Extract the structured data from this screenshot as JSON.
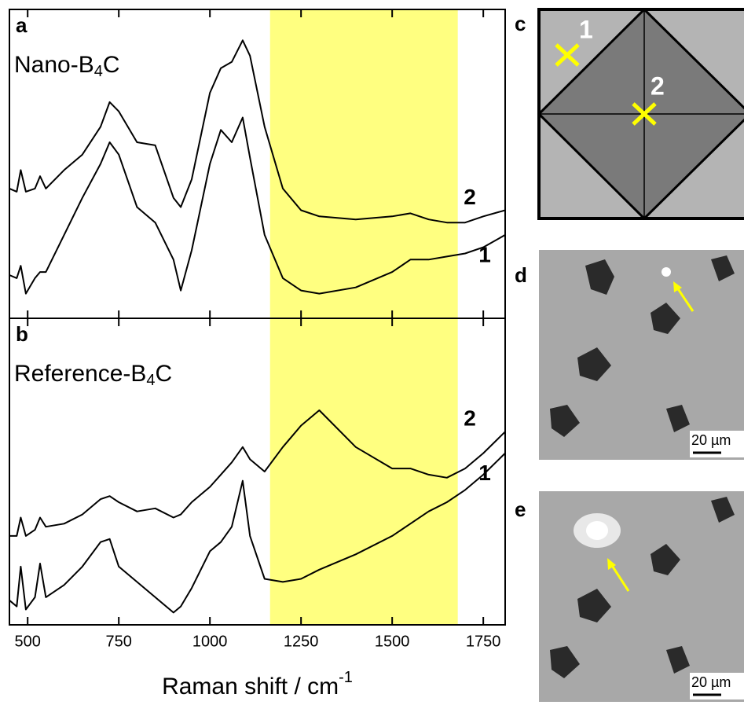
{
  "chart_data": [
    {
      "type": "line",
      "panel": "a",
      "title": {
        "prefix": "Nano-B",
        "sub": "4",
        "suffix": "C"
      },
      "x": [
        450,
        470,
        481,
        495,
        520,
        534,
        550,
        600,
        650,
        700,
        725,
        750,
        800,
        850,
        900,
        920,
        950,
        1000,
        1030,
        1060,
        1090,
        1110,
        1150,
        1200,
        1250,
        1300,
        1400,
        1500,
        1550,
        1600,
        1650,
        1700,
        1750,
        1810
      ],
      "xlim": [
        450,
        1810
      ],
      "ylim": [
        0,
        100
      ],
      "highlight": {
        "range": [
          1165,
          1680
        ],
        "color": "#ffff80"
      },
      "series": [
        {
          "name": "1",
          "color": "#000000",
          "values": [
            14,
            13,
            17,
            8,
            13,
            15,
            15,
            27,
            39,
            50,
            57,
            53,
            36,
            31,
            19,
            9,
            22,
            50,
            61,
            57,
            65,
            52,
            27,
            13,
            9,
            8,
            10,
            15,
            19,
            19,
            20,
            21,
            23,
            27
          ]
        },
        {
          "name": "2",
          "color": "#000000",
          "values": [
            42,
            41,
            48,
            41,
            42,
            46,
            42,
            48,
            53,
            62,
            70,
            67,
            57,
            56,
            39,
            36,
            45,
            73,
            81,
            83,
            90,
            85,
            62,
            42,
            35,
            33,
            32,
            33,
            34,
            32,
            31,
            31,
            33,
            35
          ]
        }
      ]
    },
    {
      "type": "line",
      "panel": "b",
      "title": {
        "prefix": "Reference-B",
        "sub": "4",
        "suffix": "C"
      },
      "x": [
        450,
        470,
        481,
        495,
        520,
        534,
        550,
        600,
        650,
        700,
        725,
        750,
        800,
        850,
        900,
        920,
        950,
        1000,
        1030,
        1060,
        1090,
        1110,
        1150,
        1200,
        1250,
        1300,
        1400,
        1500,
        1550,
        1600,
        1650,
        1700,
        1750,
        1810
      ],
      "xlim": [
        450,
        1810
      ],
      "ylim": [
        0,
        100
      ],
      "xticks": [
        500,
        750,
        1000,
        1250,
        1500,
        1750
      ],
      "xlabel": {
        "text": "Raman shift / cm",
        "sup": "-1"
      },
      "highlight": {
        "range": [
          1165,
          1680
        ],
        "color": "#ffff80"
      },
      "series": [
        {
          "name": "1",
          "color": "#000000",
          "values": [
            8,
            6,
            19,
            5,
            9,
            20,
            9,
            13,
            19,
            27,
            28,
            19,
            14,
            9,
            4,
            6,
            12,
            24,
            27,
            32,
            47,
            29,
            15,
            14,
            15,
            18,
            23,
            29,
            33,
            37,
            40,
            44,
            49,
            56
          ]
        },
        {
          "name": "2",
          "color": "#000000",
          "values": [
            29,
            29,
            35,
            29,
            31,
            35,
            32,
            33,
            36,
            41,
            42,
            40,
            37,
            38,
            35,
            36,
            40,
            45,
            49,
            53,
            58,
            54,
            50,
            58,
            65,
            70,
            58,
            51,
            51,
            49,
            48,
            51,
            56,
            63
          ]
        }
      ]
    }
  ],
  "panels": [
    {
      "label": "c",
      "markers": [
        "1",
        "2"
      ]
    },
    {
      "label": "d",
      "scale_bar": "20 µm"
    },
    {
      "label": "e",
      "scale_bar": "20 µm"
    }
  ]
}
